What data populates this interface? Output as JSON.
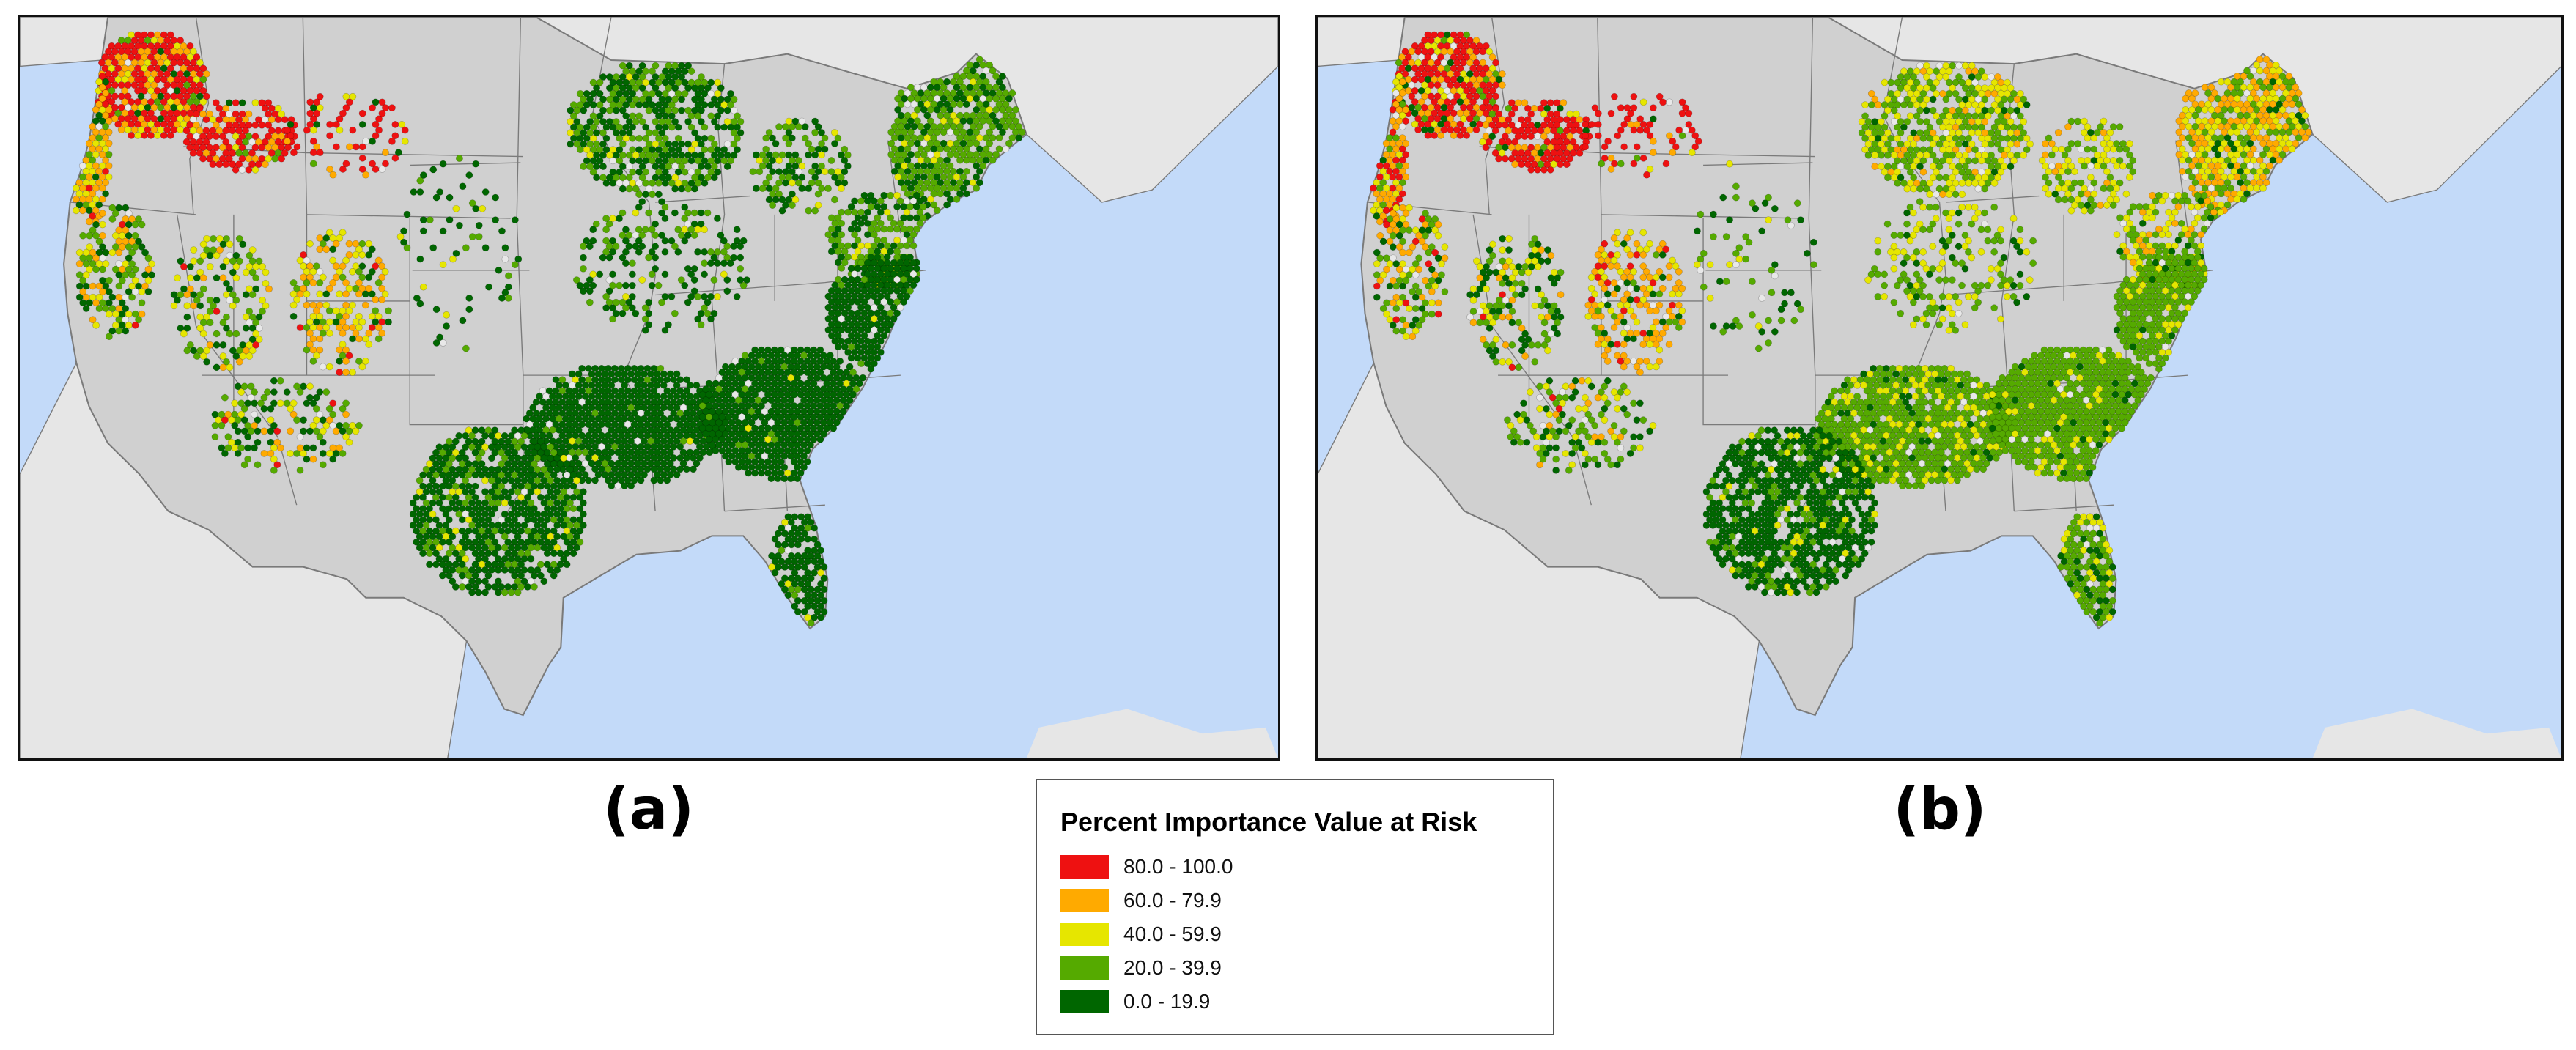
{
  "panels": [
    {
      "label": "(a)"
    },
    {
      "label": "(b)"
    }
  ],
  "legend": {
    "title": "Percent Importance Value at Risk",
    "classes": [
      {
        "range": "80.0 - 100.0",
        "color": "#ee1111"
      },
      {
        "range": "60.0 - 79.9",
        "color": "#ffaa00"
      },
      {
        "range": "40.0 - 59.9",
        "color": "#e6e600"
      },
      {
        "range": "20.0 - 39.9",
        "color": "#55aa00"
      },
      {
        "range": "0.0 - 19.9",
        "color": "#006600"
      }
    ]
  },
  "colors": {
    "ocean": "#c3daf9",
    "land_context": "#e6e6e6",
    "land_us": "#d0d0d0",
    "borders": "#7a7a7a",
    "no_data_point": "#e8e8e8"
  }
}
